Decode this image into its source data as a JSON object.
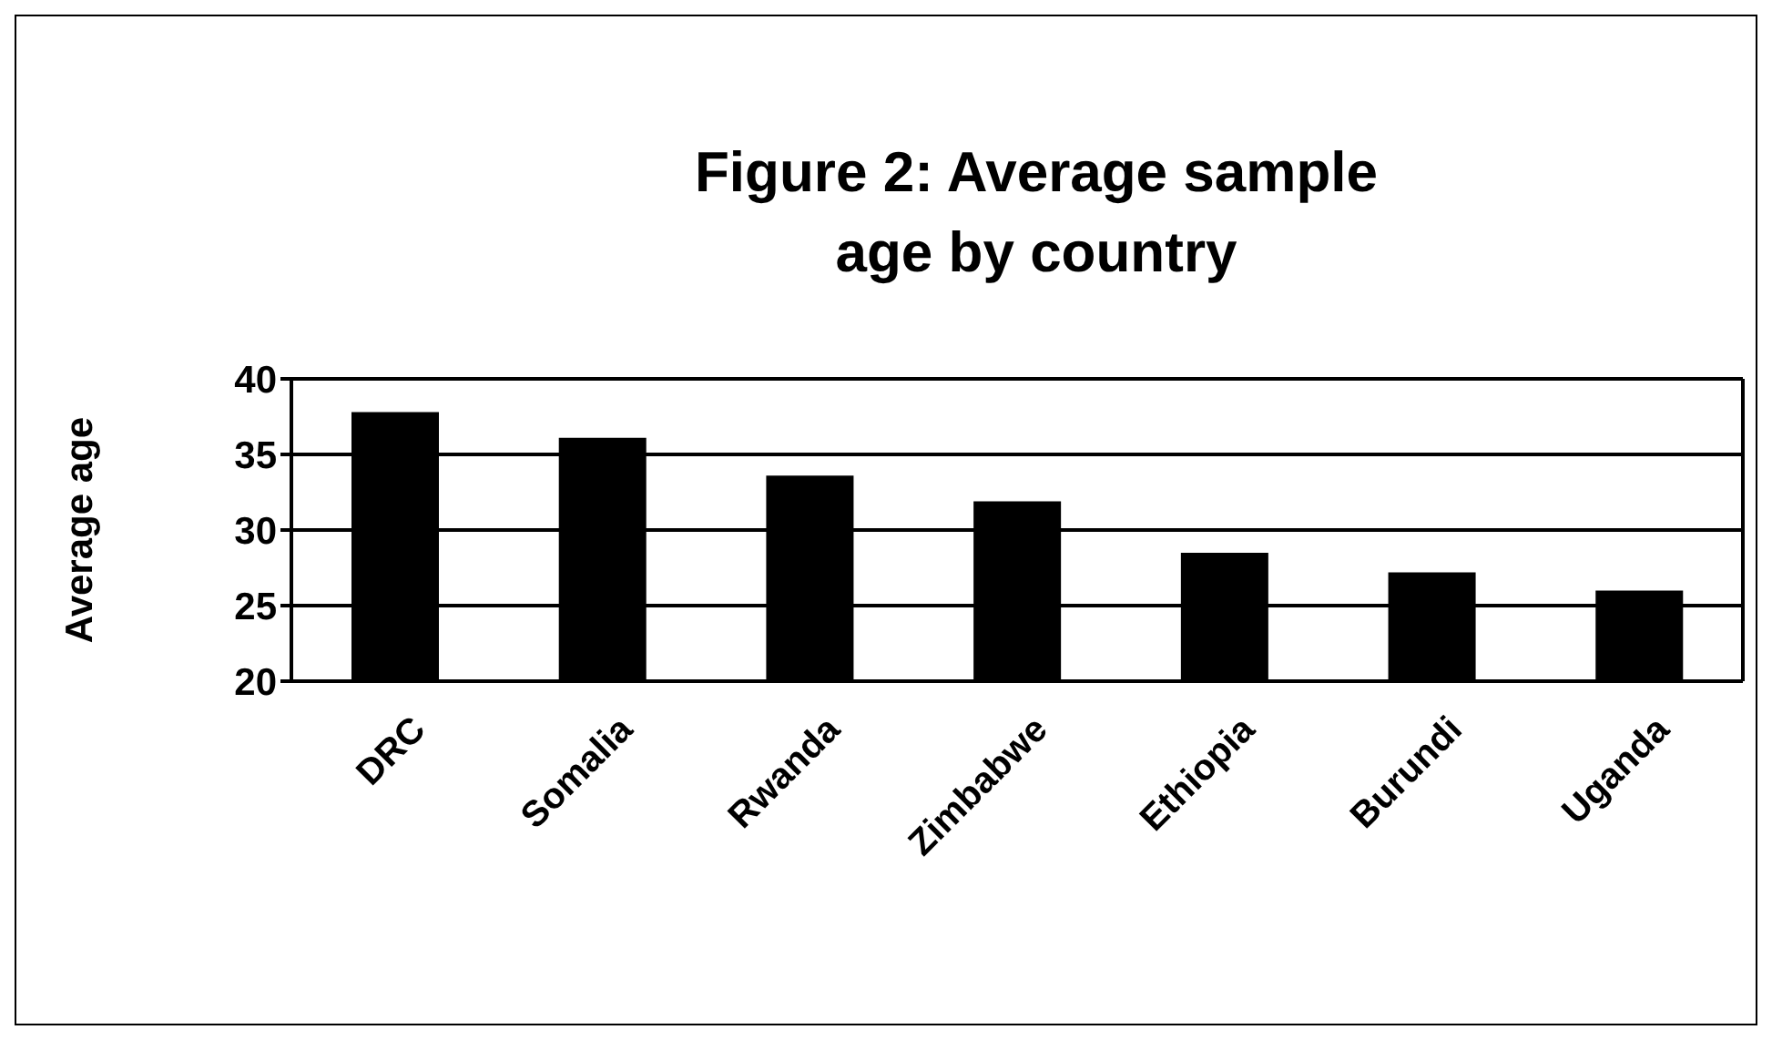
{
  "chart_data": {
    "type": "bar",
    "title": "Figure 2: Average sample age by country",
    "ylabel": "Average age",
    "categories": [
      "DRC",
      "Somalia",
      "Rwanda",
      "Zimbabwe",
      "Ethiopia",
      "Burundi",
      "Uganda"
    ],
    "values": [
      37.8,
      36.1,
      33.6,
      31.9,
      28.5,
      27.2,
      26.0
    ],
    "color": "#000000",
    "ylim": [
      20,
      40
    ],
    "yticks": [
      20,
      25,
      30,
      35,
      40
    ],
    "grid": "y"
  }
}
